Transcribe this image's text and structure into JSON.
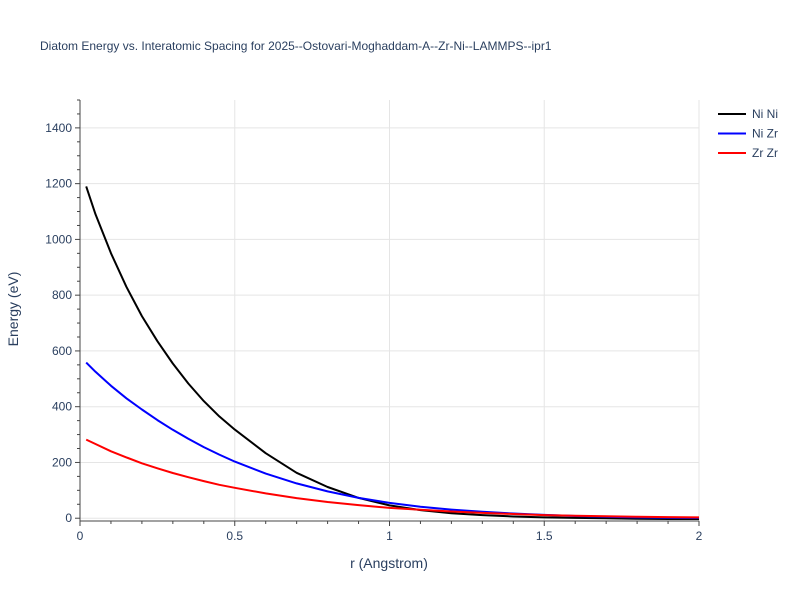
{
  "chart_data": {
    "type": "line",
    "title": "Diatom Energy vs. Interatomic Spacing for 2025--Ostovari-Moghaddam-A--Zr-Ni--LAMMPS--ipr1",
    "xlabel": "r (Angstrom)",
    "ylabel": "Energy (eV)",
    "xlim": [
      0,
      2
    ],
    "ylim": [
      -10,
      1500
    ],
    "x_ticks": [
      0,
      0.5,
      1,
      1.5,
      2
    ],
    "x_tick_labels": [
      "0",
      "0.5",
      "1",
      "1.5",
      "2"
    ],
    "y_ticks": [
      0,
      200,
      400,
      600,
      800,
      1000,
      1200,
      1400
    ],
    "y_tick_labels": [
      "0",
      "200",
      "400",
      "600",
      "800",
      "1000",
      "1200",
      "1400"
    ],
    "grid": true,
    "legend_position": "top-right",
    "series": [
      {
        "name": "Ni Ni",
        "color": "#000000",
        "x": [
          0.02,
          0.05,
          0.1,
          0.15,
          0.2,
          0.25,
          0.3,
          0.35,
          0.4,
          0.45,
          0.5,
          0.6,
          0.7,
          0.8,
          0.9,
          1.0,
          1.1,
          1.2,
          1.3,
          1.4,
          1.5,
          1.6,
          1.7,
          1.8,
          1.9,
          2.0
        ],
        "y": [
          1190,
          1090,
          950,
          830,
          725,
          635,
          555,
          483,
          420,
          365,
          318,
          233,
          163,
          112,
          73,
          46,
          29,
          18,
          11,
          6,
          3,
          1,
          0,
          -2,
          -3,
          -3
        ]
      },
      {
        "name": "Ni Zr",
        "color": "#0000ff",
        "x": [
          0.02,
          0.05,
          0.1,
          0.15,
          0.2,
          0.25,
          0.3,
          0.35,
          0.4,
          0.45,
          0.5,
          0.6,
          0.7,
          0.8,
          0.9,
          1.0,
          1.1,
          1.2,
          1.3,
          1.4,
          1.5,
          1.6,
          1.7,
          1.8,
          1.9,
          2.0
        ],
        "y": [
          558,
          525,
          475,
          430,
          390,
          352,
          317,
          285,
          255,
          228,
          203,
          160,
          125,
          96,
          73,
          55,
          41,
          31,
          23,
          17,
          12,
          8,
          5,
          3,
          2,
          1
        ]
      },
      {
        "name": "Zr Zr",
        "color": "#ff0000",
        "x": [
          0.02,
          0.05,
          0.1,
          0.15,
          0.2,
          0.25,
          0.3,
          0.35,
          0.4,
          0.45,
          0.5,
          0.6,
          0.7,
          0.8,
          0.9,
          1.0,
          1.1,
          1.2,
          1.3,
          1.4,
          1.5,
          1.6,
          1.7,
          1.8,
          1.9,
          2.0
        ],
        "y": [
          282,
          266,
          240,
          218,
          197,
          179,
          162,
          147,
          133,
          120,
          109,
          89,
          72,
          58,
          47,
          37,
          30,
          24,
          19,
          15,
          11,
          9,
          7,
          5,
          4,
          3
        ]
      }
    ]
  }
}
